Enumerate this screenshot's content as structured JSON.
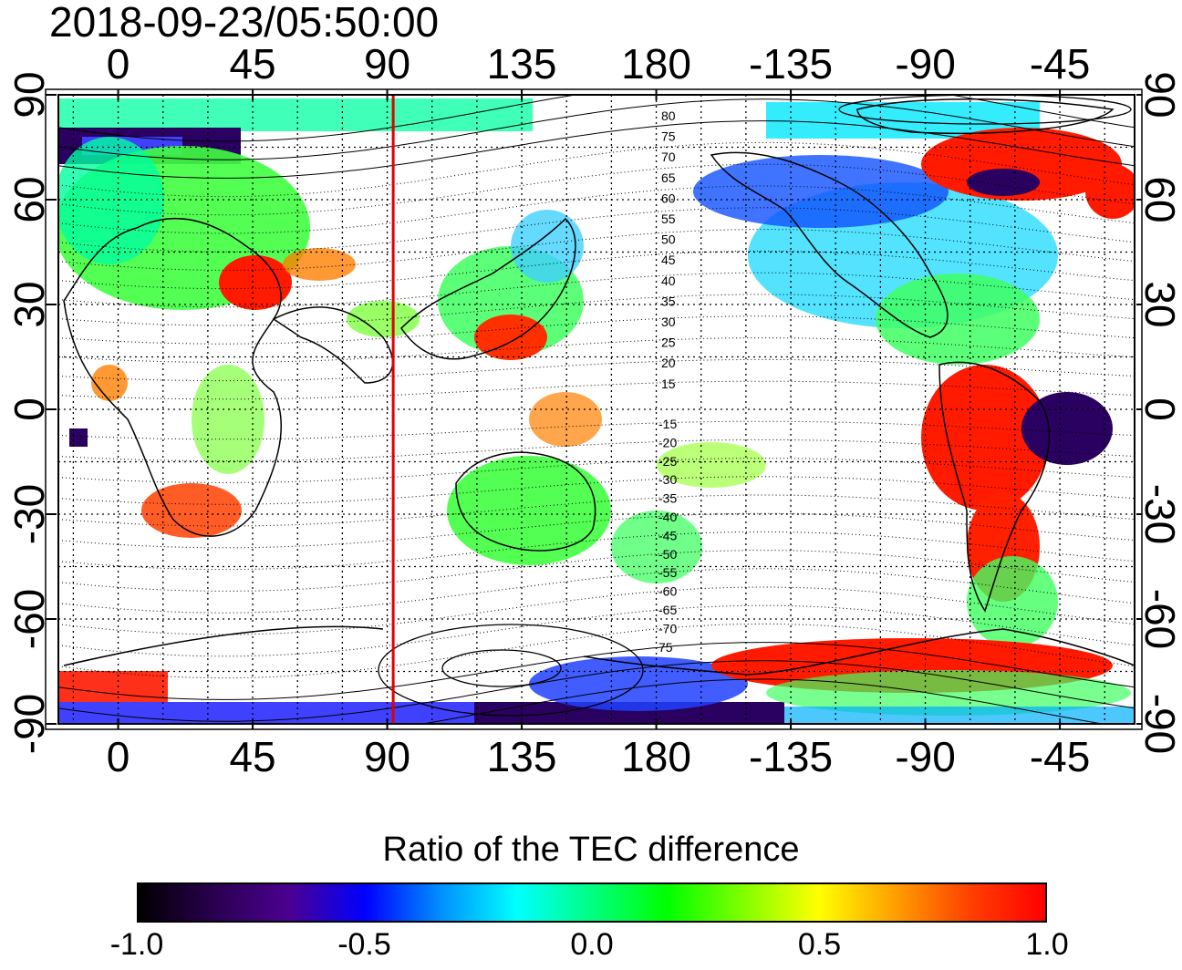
{
  "title": "2018-09-23/05:50:00",
  "map": {
    "lon_ticks": [
      "0",
      "45",
      "90",
      "135",
      "180",
      "-135",
      "-90",
      "-45"
    ],
    "lat_ticks": [
      "90",
      "60",
      "30",
      "0",
      "-30",
      "-60",
      "-90"
    ],
    "marker_longitude": 92,
    "marker_color": "#e00000",
    "magnetic_lat_labels_north": [
      "80",
      "75",
      "70",
      "65",
      "60",
      "55",
      "50",
      "45",
      "40",
      "35",
      "30",
      "25",
      "20",
      "15"
    ],
    "magnetic_lat_labels_south": [
      "-15",
      "-20",
      "-25",
      "-30",
      "-35",
      "-40",
      "-45",
      "-50",
      "-55",
      "-60",
      "-65",
      "-70",
      "75"
    ]
  },
  "colorbar": {
    "title": "Ratio of the TEC difference",
    "min": -1.0,
    "max": 1.0,
    "ticks": [
      "-1.0",
      "-0.5",
      "0.0",
      "0.5",
      "1.0"
    ],
    "colors": [
      "#000000",
      "#2a0050",
      "#4b0090",
      "#0000ff",
      "#0090ff",
      "#00ffff",
      "#00ff80",
      "#00ff00",
      "#80ff00",
      "#ffff00",
      "#ffa000",
      "#ff4000",
      "#ff0000"
    ]
  }
}
